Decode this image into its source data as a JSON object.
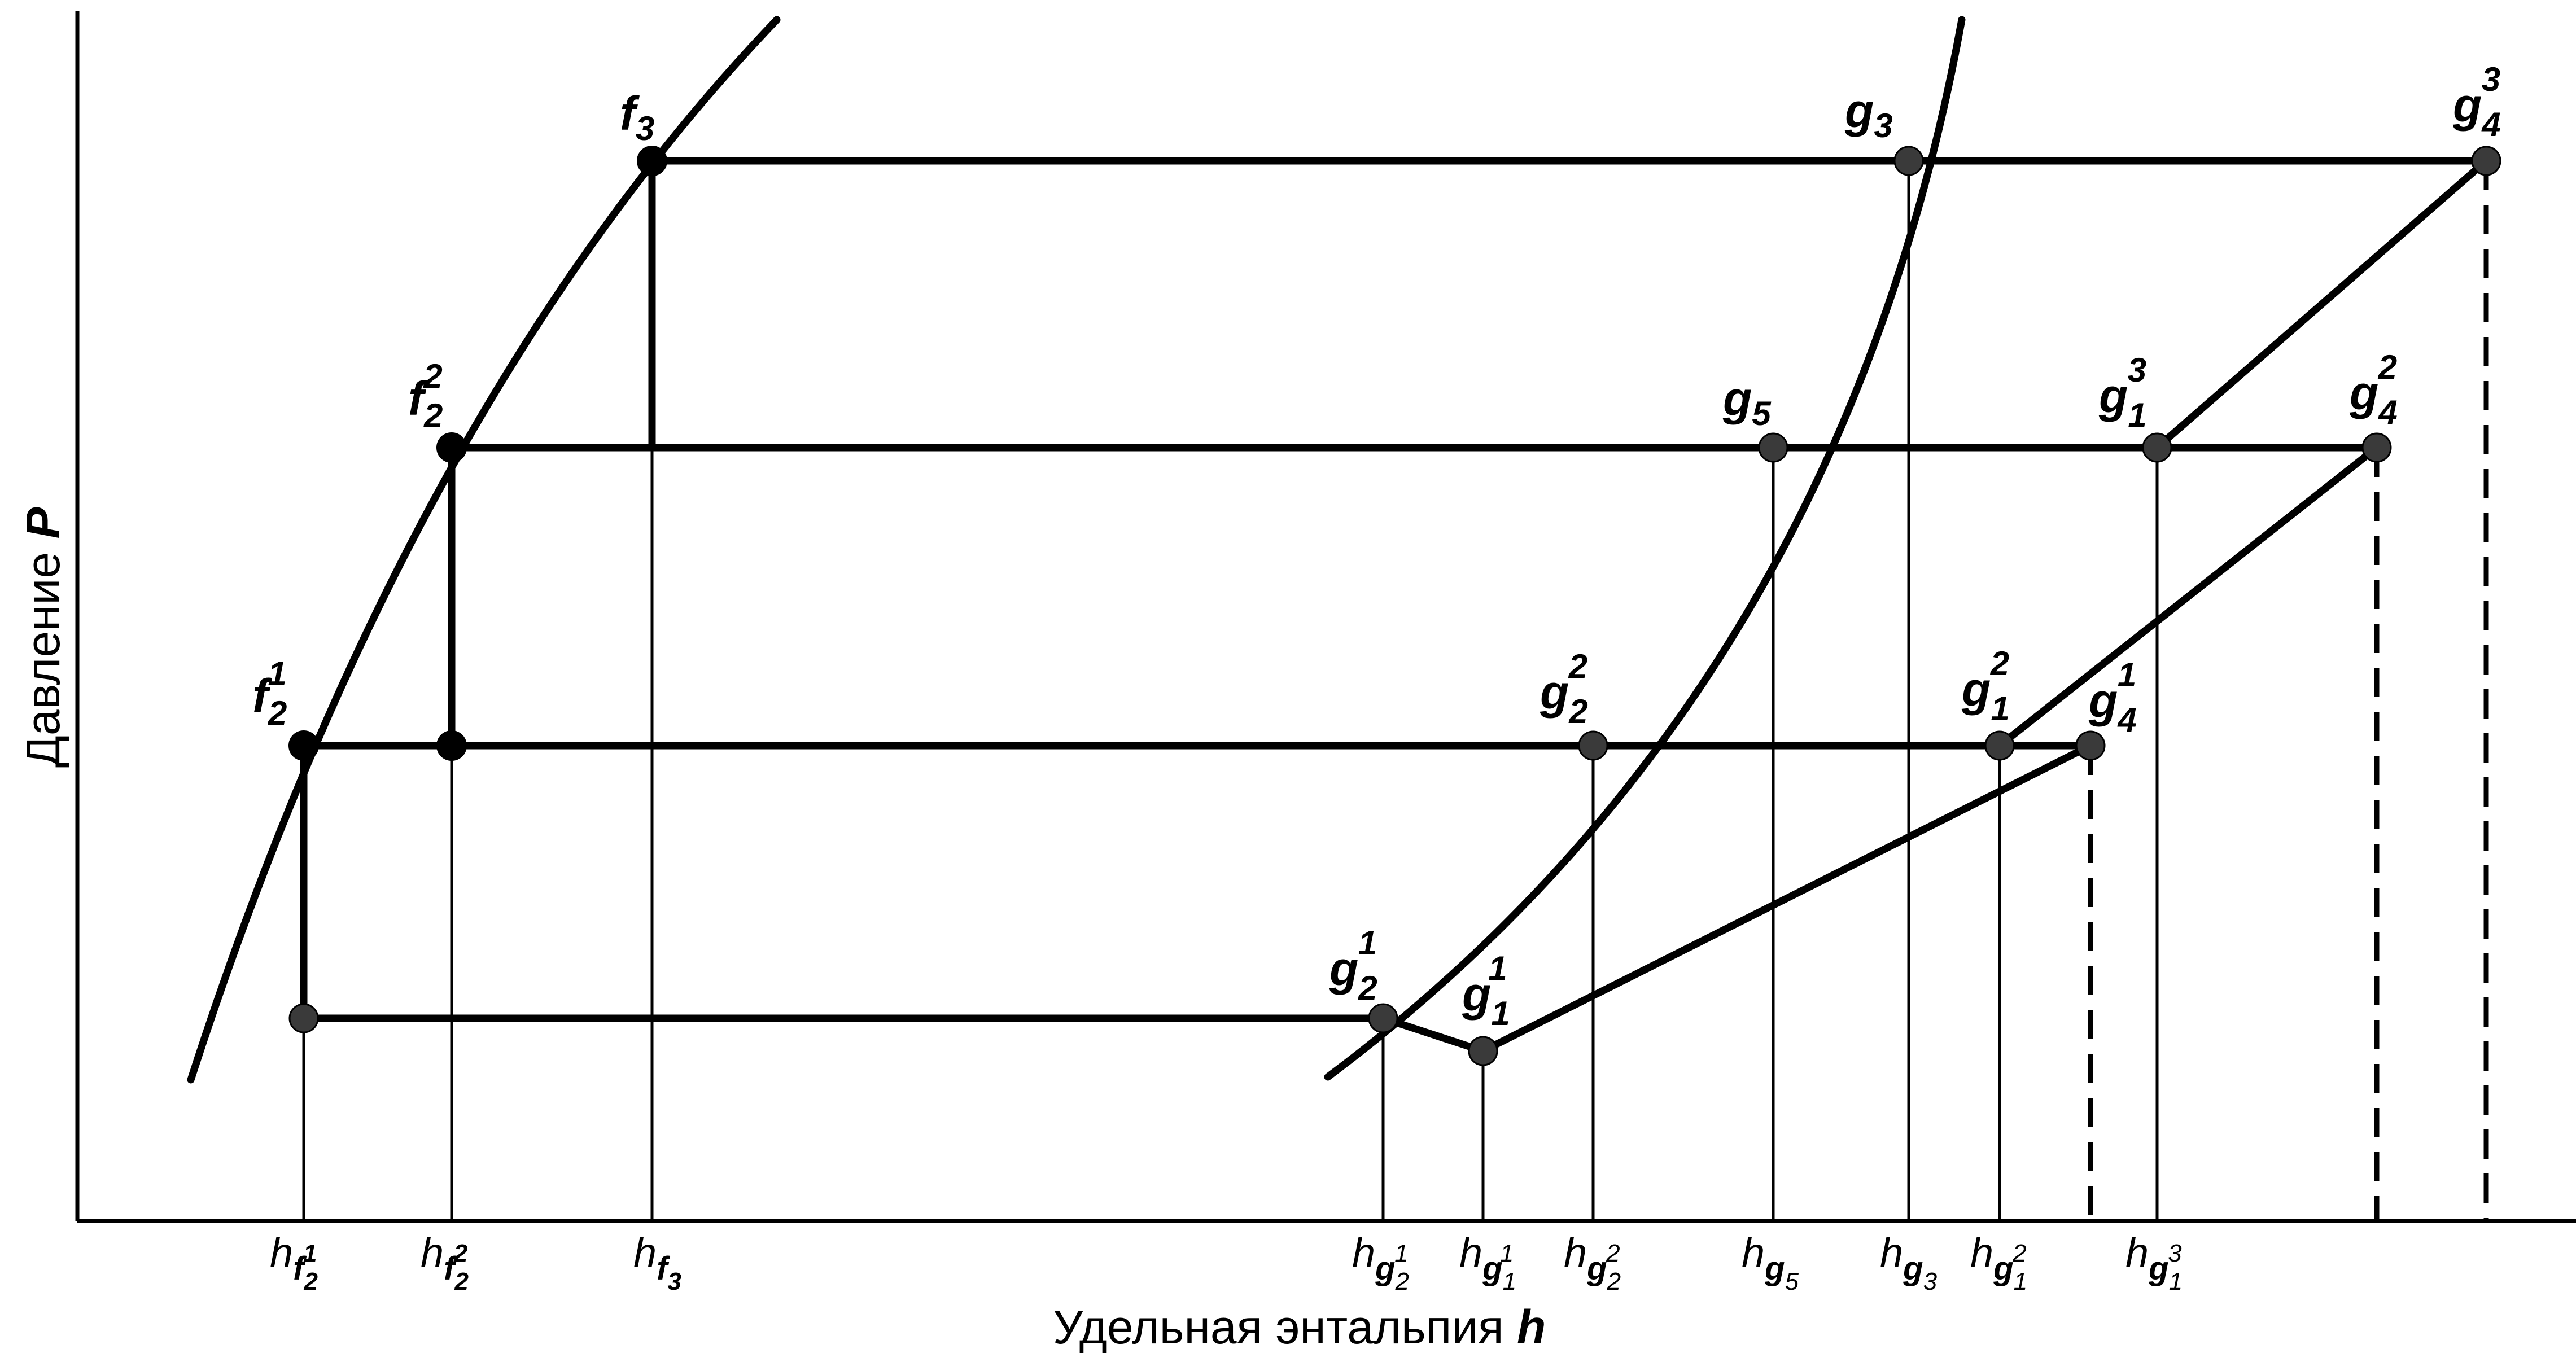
{
  "axes": {
    "x_label": "Удельная энтальпия",
    "x_symbol": "h",
    "y_label": "Давление",
    "y_symbol": "P"
  },
  "points": [
    {
      "id": "f2_1",
      "base": "f",
      "sub": "2",
      "sup": "1"
    },
    {
      "id": "f2_2",
      "base": "f",
      "sub": "2",
      "sup": "2"
    },
    {
      "id": "f3",
      "base": "f",
      "sub": "3",
      "sup": ""
    },
    {
      "id": "g3",
      "base": "g",
      "sub": "3",
      "sup": ""
    },
    {
      "id": "g4_3",
      "base": "g",
      "sub": "4",
      "sup": "3"
    },
    {
      "id": "g5",
      "base": "g",
      "sub": "5",
      "sup": ""
    },
    {
      "id": "g1_3",
      "base": "g",
      "sub": "1",
      "sup": "3"
    },
    {
      "id": "g4_2",
      "base": "g",
      "sub": "4",
      "sup": "2"
    },
    {
      "id": "g2_2",
      "base": "g",
      "sub": "2",
      "sup": "2"
    },
    {
      "id": "g1_2",
      "base": "g",
      "sub": "1",
      "sup": "2"
    },
    {
      "id": "g4_1",
      "base": "g",
      "sub": "4",
      "sup": "1"
    },
    {
      "id": "g2_1",
      "base": "g",
      "sub": "2",
      "sup": "1"
    },
    {
      "id": "g1_1",
      "base": "g",
      "sub": "1",
      "sup": "1"
    }
  ],
  "ticks": [
    {
      "id": "h_f2_1",
      "base": "h",
      "sub": "f",
      "subsub": "2",
      "subsup": "1"
    },
    {
      "id": "h_f2_2",
      "base": "h",
      "sub": "f",
      "subsub": "2",
      "subsup": "2"
    },
    {
      "id": "h_f3",
      "base": "h",
      "sub": "f",
      "subsub": "3",
      "subsup": ""
    },
    {
      "id": "h_g2_1",
      "base": "h",
      "sub": "g",
      "subsub": "2",
      "subsup": "1"
    },
    {
      "id": "h_g1_1",
      "base": "h",
      "sub": "g",
      "subsub": "1",
      "subsup": "1"
    },
    {
      "id": "h_g2_2",
      "base": "h",
      "sub": "g",
      "subsub": "2",
      "subsup": "2"
    },
    {
      "id": "h_g5",
      "base": "h",
      "sub": "g",
      "subsub": "5",
      "subsup": ""
    },
    {
      "id": "h_g3",
      "base": "h",
      "sub": "g",
      "subsub": "3",
      "subsup": ""
    },
    {
      "id": "h_g1_2",
      "base": "h",
      "sub": "g",
      "subsub": "1",
      "subsup": "2"
    },
    {
      "id": "h_g1_3",
      "base": "h",
      "sub": "g",
      "subsub": "1",
      "subsup": "3"
    }
  ]
}
